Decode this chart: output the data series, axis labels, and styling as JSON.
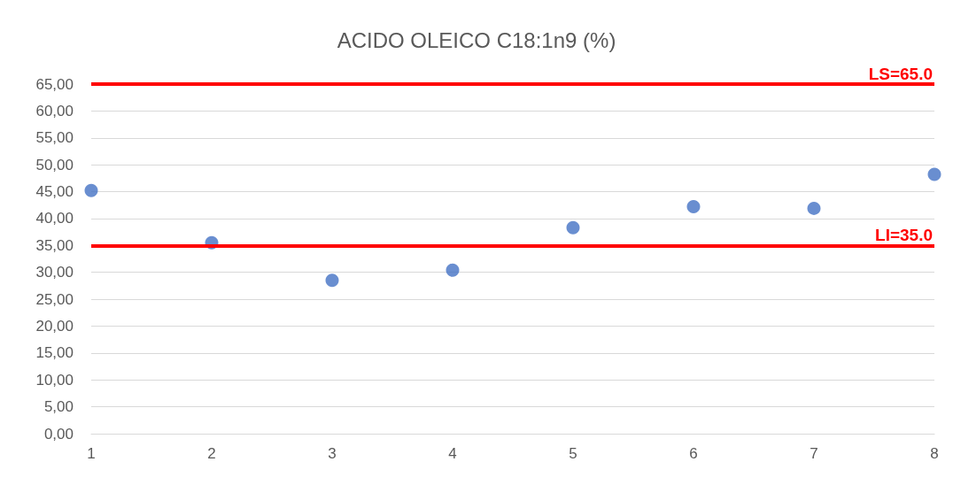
{
  "chart_data": {
    "type": "scatter",
    "title": "ACIDO OLEICO C18:1n9 (%)",
    "x": [
      1,
      2,
      3,
      4,
      5,
      6,
      7,
      8
    ],
    "series": [
      {
        "color": "#4472c4",
        "values": [
          45.2,
          35.5,
          28.5,
          30.4,
          38.3,
          42.2,
          41.9,
          48.2
        ]
      }
    ],
    "xlim": [
      1,
      8
    ],
    "xticks": [
      1,
      2,
      3,
      4,
      5,
      6,
      7,
      8
    ],
    "ylim": [
      0,
      65
    ],
    "yticks": [
      {
        "value": 0,
        "label": "0,00"
      },
      {
        "value": 5,
        "label": "5,00"
      },
      {
        "value": 10,
        "label": "10,00"
      },
      {
        "value": 15,
        "label": "15,00"
      },
      {
        "value": 20,
        "label": "20,00"
      },
      {
        "value": 25,
        "label": "25,00"
      },
      {
        "value": 30,
        "label": "30,00"
      },
      {
        "value": 35,
        "label": "35,00"
      },
      {
        "value": 40,
        "label": "40,00"
      },
      {
        "value": 45,
        "label": "45,00"
      },
      {
        "value": 50,
        "label": "50,00"
      },
      {
        "value": 55,
        "label": "55,00"
      },
      {
        "value": 60,
        "label": "60,00"
      },
      {
        "value": 65,
        "label": "65,00"
      }
    ],
    "ref_lines": [
      {
        "axis": "y",
        "value": 65,
        "label": "LS=65.0",
        "color": "#ff0000"
      },
      {
        "axis": "y",
        "value": 35,
        "label": "LI=35.0",
        "color": "#ff0000"
      }
    ],
    "grid": "y",
    "marker": "circle"
  }
}
